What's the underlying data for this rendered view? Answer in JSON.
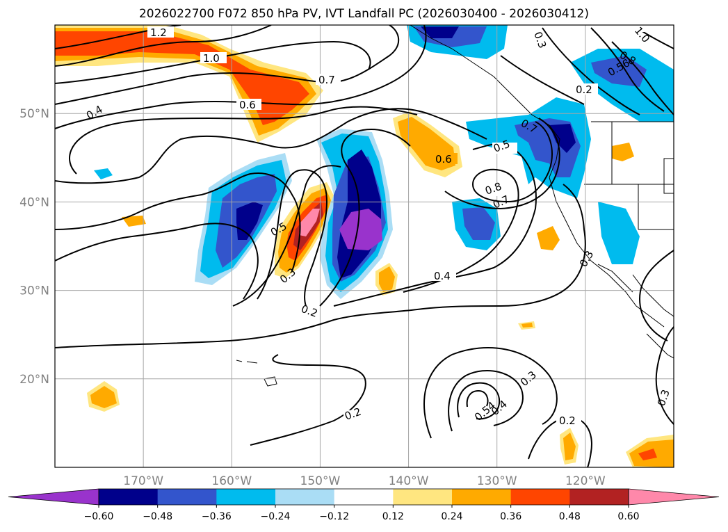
{
  "title": "2026022700 F072 850 hPa PV, IVT Landfall PC (2026030400 - 2026030412)",
  "map": {
    "lon_range": [
      -180,
      -110
    ],
    "lat_range": [
      10,
      60
    ],
    "lon_ticks": [
      {
        "lon": -170,
        "label": "170°W"
      },
      {
        "lon": -160,
        "label": "160°W"
      },
      {
        "lon": -150,
        "label": "150°W"
      },
      {
        "lon": -140,
        "label": "140°W"
      },
      {
        "lon": -130,
        "label": "130°W"
      },
      {
        "lon": -120,
        "label": "120°W"
      }
    ],
    "lat_ticks": [
      {
        "lat": 50,
        "label": "50°N"
      },
      {
        "lat": 40,
        "label": "40°N"
      },
      {
        "lat": 30,
        "label": "30°N"
      },
      {
        "lat": 20,
        "label": "20°N"
      }
    ],
    "gridlines": true,
    "contour_labels": [
      "1.2",
      "1.0",
      "0.7",
      "0.6",
      "0.4",
      "0.5",
      "0.3",
      "0.2",
      "0.4",
      "0.6",
      "0.5",
      "0.8",
      "0.7",
      "0.3",
      "0.2",
      "0.8",
      "0.7",
      "0.56",
      "0.3",
      "0.3",
      "0.2",
      "0.54",
      "0.4",
      "0.3",
      "0.2",
      "0.3",
      "1.0"
    ]
  },
  "colorbar": {
    "colors": [
      "#9933cc",
      "#00008b",
      "#3355cc",
      "#00bbee",
      "#aaddf5",
      "#ffffff",
      "#ffe680",
      "#ffaa00",
      "#ff4500",
      "#b22222",
      "#ff88aa"
    ],
    "tick_labels": [
      "−0.60",
      "−0.48",
      "−0.36",
      "−0.24",
      "−0.12",
      "0.12",
      "0.24",
      "0.36",
      "0.48",
      "0.60"
    ],
    "extend": "both"
  },
  "chart_data": {
    "type": "heatmap",
    "title": "2026022700 F072 850 hPa PV, IVT Landfall PC (2026030400 - 2026030412)",
    "levels": [
      -0.6,
      -0.48,
      -0.36,
      -0.24,
      -0.12,
      0.12,
      0.24,
      0.36,
      0.48,
      0.6
    ],
    "contour_levels_labeled": [
      0.2,
      0.3,
      0.4,
      0.5,
      0.54,
      0.56,
      0.6,
      0.7,
      0.8,
      1.0,
      1.2
    ],
    "features": [
      {
        "sign": "positive",
        "center_lon": -151,
        "center_lat": 38,
        "peak": 0.6
      },
      {
        "sign": "negative",
        "center_lon": -146,
        "center_lat": 37,
        "peak": -0.6
      },
      {
        "sign": "negative",
        "center_lon": -158,
        "center_lat": 37,
        "peak": -0.48
      },
      {
        "sign": "positive",
        "center_lon": -155,
        "center_lat": 54,
        "peak": 0.48
      },
      {
        "sign": "positive",
        "center_lon": -140,
        "center_lat": 47,
        "peak": 0.36
      },
      {
        "sign": "negative",
        "center_lon": -126,
        "center_lat": 48,
        "peak": -0.48
      },
      {
        "sign": "negative",
        "center_lon": -118,
        "center_lat": 55,
        "peak": -0.48
      },
      {
        "sign": "negative",
        "center_lon": -139,
        "center_lat": 59,
        "peak": -0.48
      },
      {
        "sign": "positive",
        "center_lon": -176,
        "center_lat": 57,
        "peak": 0.36
      }
    ]
  }
}
